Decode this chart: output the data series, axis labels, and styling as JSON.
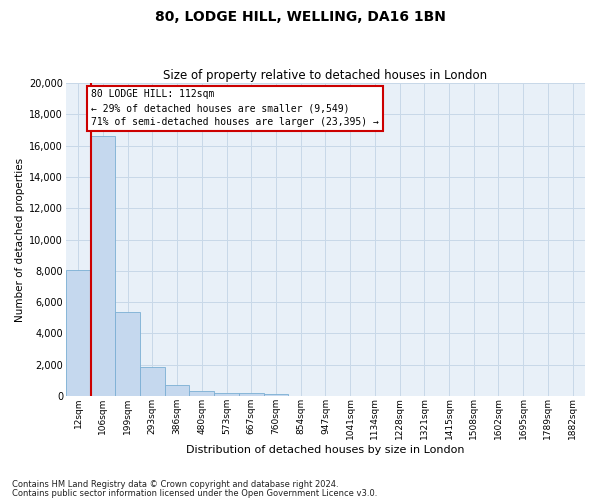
{
  "title1": "80, LODGE HILL, WELLING, DA16 1BN",
  "title2": "Size of property relative to detached houses in London",
  "xlabel": "Distribution of detached houses by size in London",
  "ylabel": "Number of detached properties",
  "bar_color": "#c5d8ee",
  "bar_edge_color": "#7bafd4",
  "grid_color": "#c8d8e8",
  "background_color": "#e8f0f8",
  "property_line_color": "#cc0000",
  "annotation_text": "80 LODGE HILL: 112sqm\n← 29% of detached houses are smaller (9,549)\n71% of semi-detached houses are larger (23,395) →",
  "categories": [
    "12sqm",
    "106sqm",
    "199sqm",
    "293sqm",
    "386sqm",
    "480sqm",
    "573sqm",
    "667sqm",
    "760sqm",
    "854sqm",
    "947sqm",
    "1041sqm",
    "1134sqm",
    "1228sqm",
    "1321sqm",
    "1415sqm",
    "1508sqm",
    "1602sqm",
    "1695sqm",
    "1789sqm",
    "1882sqm"
  ],
  "bar_heights": [
    8050,
    16600,
    5350,
    1850,
    680,
    330,
    210,
    175,
    145,
    0,
    0,
    0,
    0,
    0,
    0,
    0,
    0,
    0,
    0,
    0,
    0
  ],
  "ylim": [
    0,
    20000
  ],
  "yticks": [
    0,
    2000,
    4000,
    6000,
    8000,
    10000,
    12000,
    14000,
    16000,
    18000,
    20000
  ],
  "footnote1": "Contains HM Land Registry data © Crown copyright and database right 2024.",
  "footnote2": "Contains public sector information licensed under the Open Government Licence v3.0."
}
